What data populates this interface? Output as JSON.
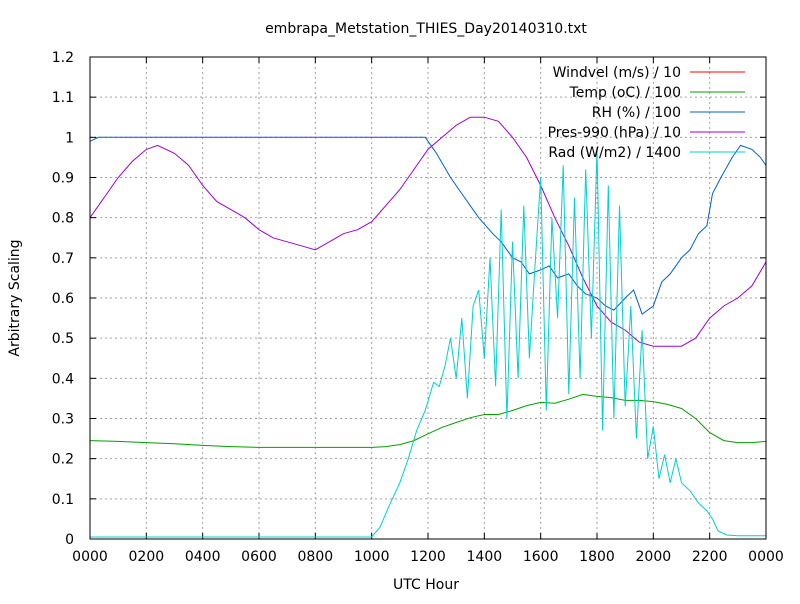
{
  "chart_data": {
    "type": "line",
    "title": "embrapa_Metstation_THIES_Day20140310.txt",
    "xlabel": "UTC Hour",
    "ylabel": "Arbitrary Scaling",
    "xlim": [
      0,
      24
    ],
    "ylim": [
      0,
      1.2
    ],
    "grid": true,
    "legend_position": "top-right",
    "x_ticks": [
      {
        "value": 0,
        "label": "0000"
      },
      {
        "value": 2,
        "label": "0200"
      },
      {
        "value": 4,
        "label": "0400"
      },
      {
        "value": 6,
        "label": "0600"
      },
      {
        "value": 8,
        "label": "0800"
      },
      {
        "value": 10,
        "label": "1000"
      },
      {
        "value": 12,
        "label": "1200"
      },
      {
        "value": 14,
        "label": "1400"
      },
      {
        "value": 16,
        "label": "1600"
      },
      {
        "value": 18,
        "label": "1800"
      },
      {
        "value": 20,
        "label": "2000"
      },
      {
        "value": 22,
        "label": "2200"
      },
      {
        "value": 24,
        "label": "0000"
      }
    ],
    "y_ticks": [
      {
        "value": 0,
        "label": "0"
      },
      {
        "value": 0.1,
        "label": "0.1"
      },
      {
        "value": 0.2,
        "label": "0.2"
      },
      {
        "value": 0.3,
        "label": "0.3"
      },
      {
        "value": 0.4,
        "label": "0.4"
      },
      {
        "value": 0.5,
        "label": "0.5"
      },
      {
        "value": 0.6,
        "label": "0.6"
      },
      {
        "value": 0.7,
        "label": "0.7"
      },
      {
        "value": 0.8,
        "label": "0.8"
      },
      {
        "value": 0.9,
        "label": "0.9"
      },
      {
        "value": 1.0,
        "label": "1"
      },
      {
        "value": 1.1,
        "label": "1.1"
      },
      {
        "value": 1.2,
        "label": "1.2"
      }
    ],
    "series": [
      {
        "name": "Windvel (m/s) / 10",
        "color": "#ff0000",
        "x": [],
        "y": []
      },
      {
        "name": "Temp (oC) / 100",
        "color": "#00a000",
        "x": [
          0,
          1,
          2,
          3,
          4,
          5,
          6,
          7,
          8,
          9,
          10,
          10.5,
          11,
          11.5,
          12,
          12.5,
          13,
          13.5,
          14,
          14.5,
          15,
          15.5,
          16,
          16.5,
          17,
          17.5,
          18,
          18.5,
          19,
          19.5,
          20,
          20.5,
          21,
          21.5,
          22,
          22.5,
          23,
          23.5,
          24
        ],
        "y": [
          0.245,
          0.243,
          0.24,
          0.237,
          0.233,
          0.23,
          0.228,
          0.228,
          0.228,
          0.228,
          0.228,
          0.23,
          0.235,
          0.245,
          0.262,
          0.278,
          0.29,
          0.302,
          0.31,
          0.31,
          0.32,
          0.332,
          0.34,
          0.338,
          0.348,
          0.36,
          0.355,
          0.352,
          0.345,
          0.345,
          0.342,
          0.335,
          0.325,
          0.3,
          0.265,
          0.245,
          0.24,
          0.24,
          0.243
        ]
      },
      {
        "name": "RH (%) / 100",
        "color": "#0060d0",
        "x": [
          0,
          0.3,
          11.9,
          12.3,
          12.8,
          13.3,
          13.8,
          14.3,
          14.6,
          15.0,
          15.3,
          15.6,
          16.0,
          16.3,
          16.6,
          17.0,
          17.3,
          17.6,
          18.0,
          18.3,
          18.6,
          19.0,
          19.3,
          19.6,
          20.0,
          20.3,
          20.6,
          21.0,
          21.3,
          21.6,
          21.9,
          22.1,
          22.4,
          22.8,
          23.1,
          23.5,
          23.8,
          24
        ],
        "y": [
          0.99,
          1.0,
          1.0,
          0.96,
          0.9,
          0.85,
          0.8,
          0.76,
          0.74,
          0.7,
          0.69,
          0.66,
          0.67,
          0.68,
          0.65,
          0.66,
          0.63,
          0.61,
          0.6,
          0.58,
          0.57,
          0.6,
          0.62,
          0.56,
          0.58,
          0.64,
          0.66,
          0.7,
          0.72,
          0.76,
          0.78,
          0.86,
          0.9,
          0.95,
          0.98,
          0.97,
          0.95,
          0.93
        ]
      },
      {
        "name": "Pres-990 (hPa) / 10",
        "color": "#a000d0",
        "x": [
          0,
          0.5,
          1,
          1.5,
          2,
          2.4,
          3,
          3.5,
          4,
          4.5,
          5,
          5.5,
          6,
          6.5,
          7,
          7.5,
          8,
          8.5,
          9,
          9.5,
          10,
          10.5,
          11,
          11.5,
          12,
          12.5,
          13,
          13.5,
          14,
          14.5,
          15,
          15.5,
          16,
          16.5,
          17,
          17.5,
          18,
          18.5,
          19,
          19.5,
          20,
          20.5,
          21,
          21.5,
          22,
          22.5,
          23,
          23.5,
          24
        ],
        "y": [
          0.8,
          0.85,
          0.9,
          0.94,
          0.97,
          0.98,
          0.96,
          0.93,
          0.88,
          0.84,
          0.82,
          0.8,
          0.77,
          0.75,
          0.74,
          0.73,
          0.72,
          0.74,
          0.76,
          0.77,
          0.79,
          0.83,
          0.87,
          0.92,
          0.97,
          1.0,
          1.03,
          1.05,
          1.05,
          1.04,
          1.0,
          0.95,
          0.88,
          0.8,
          0.73,
          0.65,
          0.58,
          0.54,
          0.52,
          0.49,
          0.48,
          0.48,
          0.48,
          0.5,
          0.55,
          0.58,
          0.6,
          0.63,
          0.69
        ]
      },
      {
        "name": "Rad (W/m2) / 1400",
        "color": "#00d0d0",
        "x": [
          0,
          10.0,
          10.3,
          10.6,
          11.0,
          11.3,
          11.6,
          11.9,
          12.2,
          12.4,
          12.6,
          12.8,
          13.0,
          13.2,
          13.4,
          13.6,
          13.8,
          14.0,
          14.2,
          14.4,
          14.6,
          14.8,
          15.0,
          15.2,
          15.4,
          15.6,
          15.8,
          16.0,
          16.2,
          16.4,
          16.6,
          16.8,
          17.0,
          17.2,
          17.4,
          17.6,
          17.8,
          18.0,
          18.2,
          18.4,
          18.6,
          18.8,
          19.0,
          19.2,
          19.4,
          19.6,
          19.8,
          20.0,
          20.2,
          20.4,
          20.6,
          20.8,
          21.0,
          21.3,
          21.6,
          21.9,
          22.1,
          22.3,
          22.6,
          23.0,
          24
        ],
        "y": [
          0.005,
          0.005,
          0.03,
          0.08,
          0.14,
          0.2,
          0.27,
          0.32,
          0.39,
          0.38,
          0.43,
          0.5,
          0.4,
          0.55,
          0.35,
          0.58,
          0.62,
          0.45,
          0.7,
          0.38,
          0.82,
          0.3,
          0.74,
          0.4,
          0.83,
          0.45,
          0.68,
          0.9,
          0.32,
          0.8,
          0.55,
          0.93,
          0.36,
          0.85,
          0.4,
          0.92,
          0.5,
          0.97,
          0.27,
          0.88,
          0.3,
          0.83,
          0.33,
          0.58,
          0.25,
          0.52,
          0.2,
          0.28,
          0.15,
          0.21,
          0.14,
          0.2,
          0.14,
          0.12,
          0.09,
          0.07,
          0.05,
          0.02,
          0.01,
          0.008,
          0.008
        ]
      }
    ]
  }
}
